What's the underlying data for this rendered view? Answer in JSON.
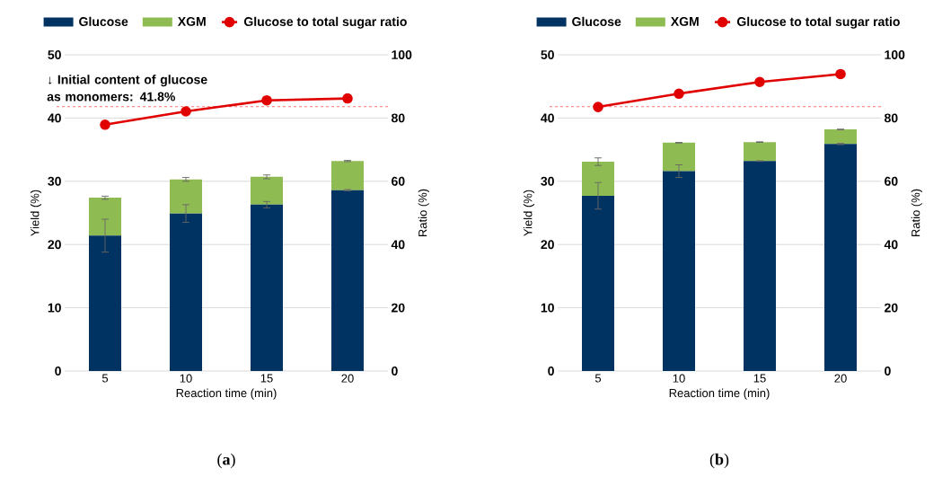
{
  "chart_data": [
    {
      "type": "bar",
      "stacked": true,
      "categories": [
        "5",
        "10",
        "15",
        "20"
      ],
      "xlabel": "Reaction time (min)",
      "ylabel": "Yield (%)",
      "y2label": "Ratio (%)",
      "series": [
        {
          "name": "Glucose",
          "color": "#003361",
          "values": [
            21.4,
            24.9,
            26.3,
            28.6
          ],
          "errors": [
            2.6,
            1.4,
            0.5,
            0.1
          ]
        },
        {
          "name": "XGM",
          "color": "#8fbc52",
          "values": [
            6.0,
            5.4,
            4.4,
            4.6
          ],
          "errors": [
            0.25,
            0.3,
            0.3,
            0.1
          ]
        },
        {
          "name": "Glucose to total sugar ratio",
          "type": "line",
          "axis": "y2",
          "color": "#e00000",
          "marker": "circle",
          "values": [
            77.9,
            82.1,
            85.6,
            86.2
          ]
        }
      ],
      "ylim": [
        0,
        50
      ],
      "yticks": [
        0,
        10,
        20,
        30,
        40,
        50
      ],
      "y2lim": [
        0,
        100
      ],
      "y2ticks": [
        0,
        20,
        40,
        60,
        80,
        100
      ],
      "grid": "y",
      "legend": "top",
      "ref_lines": [
        {
          "axis": "y",
          "value": 41.8,
          "label": "↓ Initial content of glucose as monomers:  41.8%",
          "color": "#ff5050",
          "line_style": "dashed"
        }
      ],
      "annotations": [
        "(**a**)"
      ]
    },
    {
      "type": "bar",
      "stacked": true,
      "categories": [
        "5",
        "10",
        "15",
        "20"
      ],
      "xlabel": "Reaction time (min)",
      "ylabel": "Yield (%)",
      "y2label": "Ratio (%)",
      "series": [
        {
          "name": "Glucose",
          "color": "#003361",
          "values": [
            27.7,
            31.6,
            33.2,
            35.9
          ],
          "errors": [
            2.1,
            1.0,
            0.05,
            0.1
          ]
        },
        {
          "name": "XGM",
          "color": "#8fbc52",
          "values": [
            5.4,
            4.5,
            3.0,
            2.3
          ],
          "errors": [
            0.6,
            0.05,
            0.05,
            0.05
          ]
        },
        {
          "name": "Glucose to total sugar ratio",
          "type": "line",
          "axis": "y2",
          "color": "#e00000",
          "marker": "circle",
          "values": [
            83.5,
            87.7,
            91.4,
            93.9
          ]
        }
      ],
      "ylim": [
        0,
        50
      ],
      "yticks": [
        0,
        10,
        20,
        30,
        40,
        50
      ],
      "y2lim": [
        0,
        100
      ],
      "y2ticks": [
        0,
        20,
        40,
        60,
        80,
        100
      ],
      "grid": "y",
      "legend": "top",
      "ref_lines": [
        {
          "axis": "y",
          "value": 41.8,
          "color": "#ff5050",
          "line_style": "dashed"
        }
      ],
      "annotations": [
        "(**b**)"
      ]
    }
  ]
}
